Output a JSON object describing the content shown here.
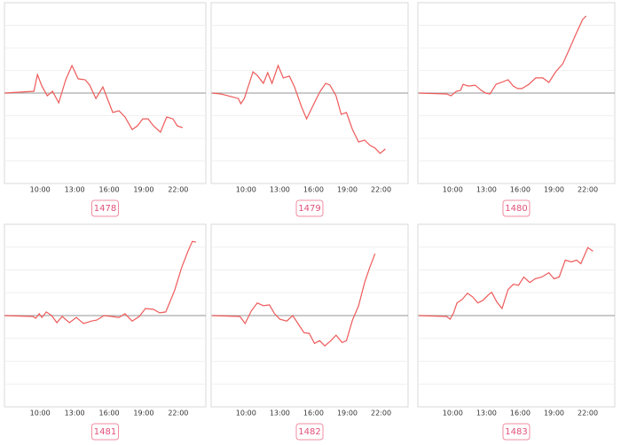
{
  "chart_data": [
    {
      "type": "line",
      "title": "1478",
      "color": "#ee5a5a",
      "xlim": [
        6.9,
        24.4
      ],
      "ylim": [
        -4,
        4
      ],
      "grid": true,
      "yticks": [
        -3,
        -2,
        -1,
        0,
        1,
        2,
        3
      ],
      "xticks": [
        {
          "value": 10,
          "label": "10:00"
        },
        {
          "value": 13,
          "label": "13:00"
        },
        {
          "value": 16,
          "label": "16:00"
        },
        {
          "value": 19,
          "label": "19:00"
        },
        {
          "value": 22,
          "label": "22:00"
        }
      ],
      "x": [
        6.92,
        9.46,
        9.77,
        10.15,
        10.62,
        11.08,
        11.62,
        12.23,
        12.77,
        13.31,
        13.92,
        14.31,
        14.85,
        15.46,
        16.31,
        16.85,
        17.38,
        18.0,
        18.46,
        18.92,
        19.38,
        19.85,
        20.46,
        21.0,
        21.54,
        21.92,
        22.38
      ],
      "values": [
        0,
        0.08,
        0.82,
        0.31,
        -0.12,
        0.08,
        -0.43,
        0.59,
        1.22,
        0.63,
        0.59,
        0.35,
        -0.24,
        0.27,
        -0.86,
        -0.78,
        -1.06,
        -1.61,
        -1.45,
        -1.14,
        -1.14,
        -1.45,
        -1.73,
        -1.06,
        -1.14,
        -1.45,
        -1.53
      ]
    },
    {
      "type": "line",
      "title": "1479",
      "color": "#ee5a5a",
      "xlim": [
        6.9,
        24.4
      ],
      "ylim": [
        -4,
        4
      ],
      "grid": true,
      "yticks": [
        -3,
        -2,
        -1,
        0,
        1,
        2,
        3
      ],
      "xticks": [
        {
          "value": 10,
          "label": "10:00"
        },
        {
          "value": 13,
          "label": "13:00"
        },
        {
          "value": 16,
          "label": "16:00"
        },
        {
          "value": 19,
          "label": "19:00"
        },
        {
          "value": 22,
          "label": "22:00"
        }
      ],
      "x": [
        7,
        7.77,
        9.31,
        9.54,
        9.85,
        10.62,
        11.0,
        11.54,
        11.92,
        12.31,
        12.85,
        13.31,
        13.85,
        14.31,
        14.92,
        15.38,
        16.0,
        16.54,
        17.08,
        17.46,
        18.0,
        18.46,
        18.92,
        19.46,
        20.0,
        20.54,
        21.0,
        21.46,
        21.92,
        22.38
      ],
      "values": [
        0,
        -0.04,
        -0.24,
        -0.47,
        -0.24,
        0.94,
        0.78,
        0.43,
        0.9,
        0.43,
        1.22,
        0.67,
        0.75,
        0.27,
        -0.59,
        -1.14,
        -0.51,
        0.04,
        0.43,
        0.35,
        -0.12,
        -0.94,
        -0.86,
        -1.61,
        -2.16,
        -2.08,
        -2.31,
        -2.43,
        -2.67,
        -2.47
      ]
    },
    {
      "type": "line",
      "title": "1480",
      "color": "#ee5a5a",
      "xlim": [
        6.9,
        24.4
      ],
      "ylim": [
        -4,
        4
      ],
      "grid": true,
      "yticks": [
        -3,
        -2,
        -1,
        0,
        1,
        2,
        3
      ],
      "xticks": [
        {
          "value": 10,
          "label": "10:00"
        },
        {
          "value": 13,
          "label": "13:00"
        },
        {
          "value": 16,
          "label": "16:00"
        },
        {
          "value": 19,
          "label": "19:00"
        },
        {
          "value": 22,
          "label": "22:00"
        }
      ],
      "x": [
        7,
        9.46,
        9.85,
        10.31,
        10.69,
        10.92,
        11.38,
        12.0,
        12.54,
        12.92,
        13.31,
        13.85,
        14.31,
        14.92,
        15.38,
        15.77,
        16.15,
        16.77,
        17.38,
        18.0,
        18.54,
        19.15,
        19.77,
        20.38,
        21.0,
        21.54,
        21.85
      ],
      "values": [
        0,
        -0.04,
        -0.12,
        0.08,
        0.12,
        0.39,
        0.31,
        0.35,
        0.12,
        0,
        -0.04,
        0.39,
        0.47,
        0.59,
        0.31,
        0.2,
        0.2,
        0.39,
        0.67,
        0.67,
        0.47,
        0.94,
        1.29,
        1.96,
        2.67,
        3.25,
        3.41
      ]
    },
    {
      "type": "line",
      "title": "1481",
      "color": "#ee5a5a",
      "xlim": [
        6.9,
        24.4
      ],
      "ylim": [
        -4,
        4
      ],
      "grid": true,
      "yticks": [
        -3,
        -2,
        -1,
        0,
        1,
        2,
        3
      ],
      "xticks": [
        {
          "value": 10,
          "label": "10:00"
        },
        {
          "value": 13,
          "label": "13:00"
        },
        {
          "value": 16,
          "label": "16:00"
        },
        {
          "value": 19,
          "label": "19:00"
        },
        {
          "value": 22,
          "label": "22:00"
        }
      ],
      "x": [
        6.92,
        9.38,
        9.62,
        9.92,
        10.15,
        10.54,
        11.0,
        11.46,
        11.92,
        12.54,
        13.15,
        13.77,
        14.46,
        14.92,
        15.54,
        16.23,
        16.85,
        17.38,
        18.0,
        18.62,
        19.15,
        19.85,
        20.38,
        20.92,
        21.69,
        22.31,
        22.85,
        23.23,
        23.54
      ],
      "values": [
        0,
        -0.04,
        -0.12,
        0.08,
        -0.08,
        0.16,
        0,
        -0.31,
        -0.04,
        -0.31,
        -0.08,
        -0.35,
        -0.24,
        -0.2,
        0,
        -0.04,
        -0.08,
        0.08,
        -0.24,
        -0.04,
        0.31,
        0.27,
        0.12,
        0.16,
        1.1,
        2.12,
        2.82,
        3.25,
        3.22
      ]
    },
    {
      "type": "line",
      "title": "1482",
      "color": "#ee5a5a",
      "xlim": [
        6.9,
        24.4
      ],
      "ylim": [
        -4,
        4
      ],
      "grid": true,
      "yticks": [
        -3,
        -2,
        -1,
        0,
        1,
        2,
        3
      ],
      "xticks": [
        {
          "value": 10,
          "label": "10:00"
        },
        {
          "value": 13,
          "label": "13:00"
        },
        {
          "value": 16,
          "label": "16:00"
        },
        {
          "value": 19,
          "label": "19:00"
        },
        {
          "value": 22,
          "label": "22:00"
        }
      ],
      "x": [
        7,
        9.46,
        9.92,
        10.46,
        11.0,
        11.54,
        12.08,
        12.54,
        13.0,
        13.62,
        14.15,
        14.62,
        15.15,
        15.62,
        16.08,
        16.54,
        17.0,
        17.54,
        18.0,
        18.54,
        18.92,
        19.46,
        20.0,
        20.54,
        21.0,
        21.46
      ],
      "values": [
        0,
        -0.04,
        -0.35,
        0.2,
        0.55,
        0.43,
        0.47,
        0.08,
        -0.16,
        -0.24,
        0,
        -0.35,
        -0.75,
        -0.78,
        -1.22,
        -1.1,
        -1.33,
        -1.1,
        -0.86,
        -1.18,
        -1.1,
        -0.2,
        0.43,
        1.45,
        2.12,
        2.71
      ]
    },
    {
      "type": "line",
      "title": "1483",
      "color": "#ee5a5a",
      "xlim": [
        6.9,
        24.4
      ],
      "ylim": [
        -4,
        4
      ],
      "grid": true,
      "yticks": [
        -3,
        -2,
        -1,
        0,
        1,
        2,
        3
      ],
      "xticks": [
        {
          "value": 10,
          "label": "10:00"
        },
        {
          "value": 13,
          "label": "13:00"
        },
        {
          "value": 16,
          "label": "16:00"
        },
        {
          "value": 19,
          "label": "19:00"
        },
        {
          "value": 22,
          "label": "22:00"
        }
      ],
      "x": [
        7,
        9.46,
        9.77,
        10.08,
        10.38,
        10.85,
        11.31,
        11.77,
        12.23,
        12.69,
        13.15,
        13.46,
        13.92,
        14.38,
        14.92,
        15.38,
        15.85,
        16.31,
        16.85,
        17.31,
        17.92,
        18.54,
        19.0,
        19.46,
        20.0,
        20.54,
        21.0,
        21.38,
        22.0,
        22.46
      ],
      "values": [
        0,
        -0.04,
        -0.16,
        0.12,
        0.55,
        0.71,
        0.98,
        0.82,
        0.55,
        0.67,
        0.9,
        1.02,
        0.59,
        0.31,
        1.14,
        1.37,
        1.33,
        1.69,
        1.45,
        1.61,
        1.69,
        1.88,
        1.61,
        1.69,
        2.43,
        2.35,
        2.43,
        2.27,
        2.98,
        2.82
      ]
    }
  ]
}
